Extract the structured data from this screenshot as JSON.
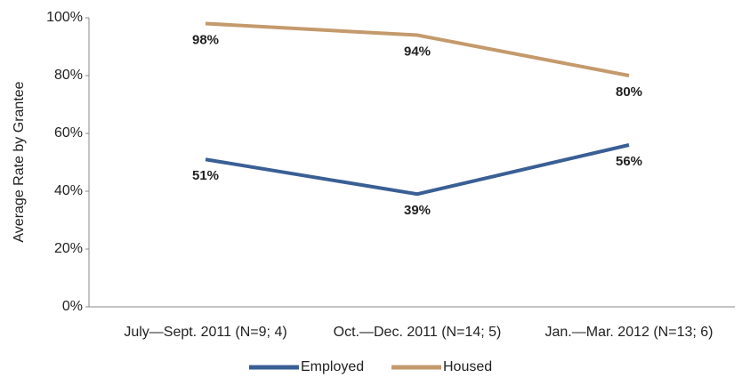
{
  "chart_data": {
    "type": "line",
    "y_label": "Average Rate by Grantee",
    "categories": [
      "July—Sept. 2011 (N=9; 4)",
      "Oct.—Dec. 2011 (N=14; 5)",
      "Jan.—Mar. 2012 (N=13; 6)"
    ],
    "series": [
      {
        "name": "Employed",
        "color": "#3a5f95",
        "values": [
          51,
          39,
          56
        ],
        "value_labels": [
          "51%",
          "39%",
          "56%"
        ]
      },
      {
        "name": "Housed",
        "color": "#c49a6c",
        "values": [
          98,
          94,
          80
        ],
        "value_labels": [
          "98%",
          "94%",
          "80%"
        ]
      }
    ],
    "ylim": [
      0,
      100
    ],
    "yticks": [
      {
        "value": 0,
        "label": "0%"
      },
      {
        "value": 20,
        "label": "20%"
      },
      {
        "value": 40,
        "label": "40%"
      },
      {
        "value": 60,
        "label": "60%"
      },
      {
        "value": 80,
        "label": "80%"
      },
      {
        "value": 100,
        "label": "100%"
      }
    ]
  }
}
